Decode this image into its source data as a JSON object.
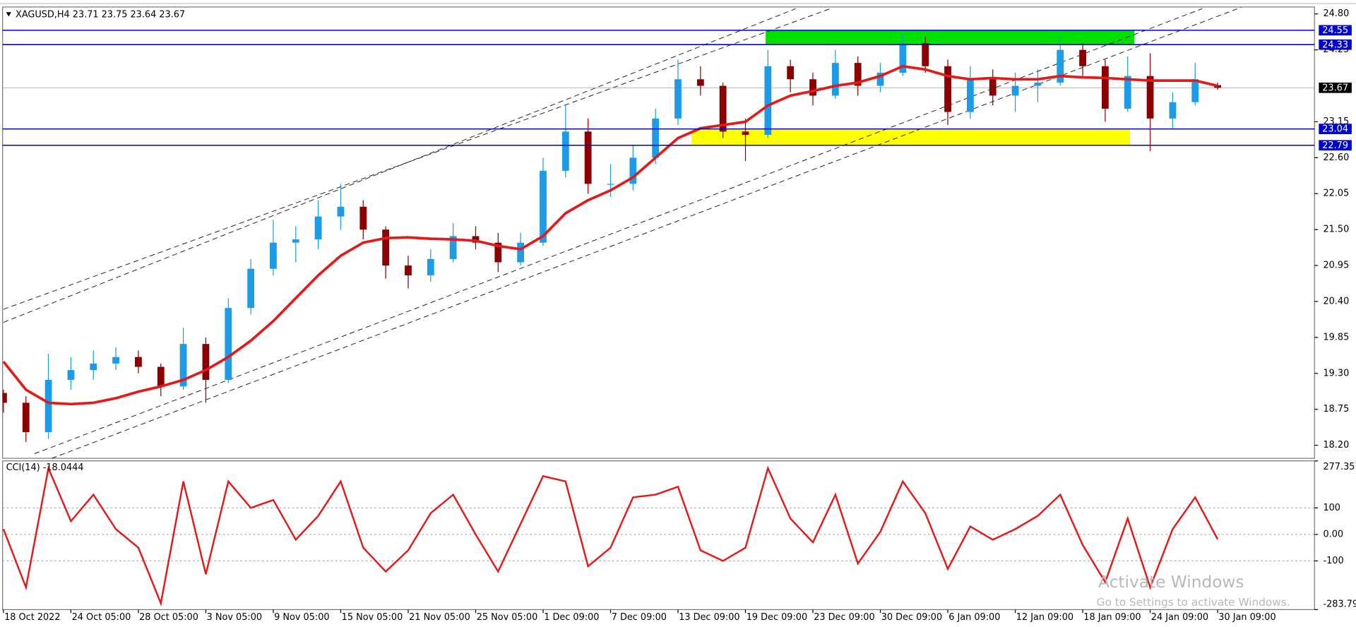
{
  "chart_data": [
    {
      "type": "candlestick",
      "title": "XAGUSD,H4  23.71 23.75 23.64 23.67",
      "categories": [
        "18 Oct 2022",
        null,
        null,
        "24 Oct 05:00",
        null,
        null,
        "28 Oct 05:00",
        null,
        null,
        "3 Nov 05:00",
        null,
        null,
        "9 Nov 05:00",
        null,
        null,
        "15 Nov 05:00",
        null,
        null,
        "21 Nov 05:00",
        null,
        null,
        "25 Nov 05:00",
        null,
        null,
        "1 Dec 09:00",
        null,
        null,
        "7 Dec 09:00",
        null,
        null,
        "13 Dec 09:00",
        null,
        null,
        "19 Dec 09:00",
        null,
        null,
        "23 Dec 09:00",
        null,
        null,
        "30 Dec 09:00",
        null,
        null,
        "6 Jan 09:00",
        null,
        null,
        "12 Jan 09:00",
        null,
        null,
        "18 Jan 09:00",
        null,
        null,
        "24 Jan 09:00",
        null,
        null,
        "30 Jan 09:00"
      ],
      "open": [
        19.0,
        18.85,
        18.4,
        19.2,
        19.35,
        19.45,
        19.55,
        19.4,
        19.1,
        19.75,
        19.2,
        20.3,
        20.9,
        21.3,
        21.35,
        21.7,
        21.85,
        21.5,
        20.95,
        20.8,
        21.05,
        21.4,
        21.3,
        21.0,
        21.3,
        22.4,
        23.0,
        22.2,
        22.2,
        22.6,
        23.2,
        23.8,
        23.7,
        23.0,
        22.95,
        24.0,
        23.8,
        23.55,
        24.05,
        23.7,
        23.9,
        24.35,
        24.0,
        23.3,
        23.8,
        23.55,
        23.7,
        23.75,
        24.25,
        24.0,
        23.35,
        23.85,
        23.2,
        23.45,
        23.71
      ],
      "high": [
        19.05,
        18.95,
        19.6,
        19.55,
        19.65,
        19.7,
        19.65,
        19.45,
        20.0,
        19.85,
        20.45,
        21.05,
        21.65,
        21.55,
        21.95,
        22.2,
        21.95,
        21.55,
        21.1,
        21.2,
        21.6,
        21.55,
        21.45,
        21.45,
        22.6,
        23.4,
        23.2,
        22.5,
        22.8,
        23.35,
        24.1,
        24.0,
        23.75,
        23.2,
        24.25,
        24.1,
        23.9,
        24.25,
        24.15,
        24.05,
        24.5,
        24.45,
        24.1,
        24.0,
        23.95,
        23.9,
        23.95,
        24.45,
        24.35,
        24.1,
        24.15,
        24.2,
        23.6,
        24.05,
        23.75
      ],
      "low": [
        18.7,
        18.25,
        18.3,
        19.05,
        19.2,
        19.35,
        19.3,
        18.95,
        19.05,
        18.85,
        19.15,
        20.2,
        20.8,
        21.0,
        21.2,
        21.5,
        21.35,
        20.75,
        20.6,
        20.7,
        21.0,
        21.2,
        20.85,
        20.95,
        21.25,
        22.3,
        22.05,
        22.0,
        22.1,
        22.5,
        23.1,
        23.55,
        22.9,
        22.55,
        22.9,
        23.6,
        23.4,
        23.5,
        23.55,
        23.6,
        23.85,
        23.9,
        23.1,
        23.2,
        23.4,
        23.3,
        23.45,
        23.7,
        23.85,
        23.15,
        23.3,
        22.7,
        23.05,
        23.4,
        23.64
      ],
      "close": [
        18.85,
        18.4,
        19.2,
        19.35,
        19.45,
        19.55,
        19.4,
        19.1,
        19.75,
        19.2,
        20.3,
        20.9,
        21.3,
        21.35,
        21.7,
        21.85,
        21.5,
        20.95,
        20.8,
        21.05,
        21.4,
        21.3,
        21.0,
        21.3,
        22.4,
        23.0,
        22.2,
        22.2,
        22.6,
        23.2,
        23.8,
        23.7,
        23.0,
        22.95,
        24.0,
        23.8,
        23.55,
        24.05,
        23.7,
        23.9,
        24.35,
        24.0,
        23.3,
        23.8,
        23.55,
        23.7,
        23.75,
        24.25,
        24.0,
        23.35,
        23.85,
        23.2,
        23.45,
        23.8,
        23.67
      ],
      "up_color": "#1e9be6",
      "down_color": "#8b0000",
      "moving_average": {
        "color": "#e31a1a",
        "values": [
          19.48,
          19.05,
          18.85,
          18.83,
          18.85,
          18.92,
          19.02,
          19.1,
          19.2,
          19.35,
          19.55,
          19.8,
          20.1,
          20.45,
          20.8,
          21.1,
          21.3,
          21.37,
          21.38,
          21.36,
          21.35,
          21.33,
          21.25,
          21.2,
          21.4,
          21.75,
          21.95,
          22.1,
          22.3,
          22.6,
          22.9,
          23.05,
          23.1,
          23.15,
          23.4,
          23.55,
          23.62,
          23.7,
          23.75,
          23.85,
          24.0,
          23.95,
          23.85,
          23.8,
          23.82,
          23.8,
          23.8,
          23.85,
          23.83,
          23.82,
          23.8,
          23.78,
          23.78,
          23.78,
          23.7
        ]
      },
      "levels": [
        {
          "value": 24.55,
          "color": "#0000d0"
        },
        {
          "value": 24.33,
          "color": "#0000d0"
        },
        {
          "value": 23.04,
          "color": "#0000d0"
        },
        {
          "value": 22.79,
          "color": "#0000d0"
        }
      ],
      "current_price": 23.67,
      "zones": [
        {
          "from": 33.9,
          "to": 50.3,
          "low": 24.33,
          "high": 24.55,
          "color": "#00e000"
        },
        {
          "from": 30.6,
          "to": 50.1,
          "low": 22.79,
          "high": 23.04,
          "color": "#ffff00"
        }
      ],
      "trendlines": [
        {
          "x0": 0,
          "y0": 20.28,
          "x1": 36.77,
          "y1": 24.88
        },
        {
          "x0": 0,
          "y0": 20.08,
          "x1": 35.23,
          "y1": 24.88
        },
        {
          "x0": 1.38,
          "y0": 18.07,
          "x1": 53.31,
          "y1": 24.88
        },
        {
          "x0": 2.15,
          "y0": 18.0,
          "x1": 55.04,
          "y1": 24.9
        }
      ],
      "ylim": [
        18.0,
        24.906
      ],
      "yticks": [
        {
          "value": 24.8,
          "label": "24.80"
        },
        24.25,
        23.15,
        {
          "value": 22.6,
          "label": "22.60"
        },
        22.05,
        {
          "value": 21.5,
          "label": "21.50"
        },
        20.95,
        {
          "value": 20.4,
          "label": "20.40"
        },
        19.85,
        {
          "value": 19.3,
          "label": "19.30"
        },
        18.75,
        {
          "value": 18.2,
          "label": "18.20"
        }
      ]
    },
    {
      "type": "line",
      "title": "CCI(14) -18.0444",
      "color": "#e31a1a",
      "values": [
        20,
        -200,
        250,
        50,
        150,
        20,
        -50,
        -260,
        200,
        -150,
        200,
        100,
        130,
        -20,
        70,
        200,
        -50,
        -140,
        -60,
        80,
        150,
        0,
        -140,
        40,
        220,
        200,
        -120,
        -50,
        140,
        150,
        180,
        -60,
        -100,
        -50,
        250,
        60,
        -30,
        150,
        -110,
        10,
        200,
        80,
        -130,
        30,
        -20,
        20,
        70,
        150,
        -40,
        -180,
        60,
        -200,
        20,
        140,
        -18.0444
      ],
      "ylim": [
        -283.796,
        277.357
      ],
      "yticks": [
        277.357,
        100,
        {
          "value": 0,
          "label": "0.00"
        },
        -100,
        -283.796
      ],
      "grid": true
    }
  ],
  "watermark": {
    "title": "Activate Windows",
    "subtitle": "Go to Settings to activate Windows."
  }
}
